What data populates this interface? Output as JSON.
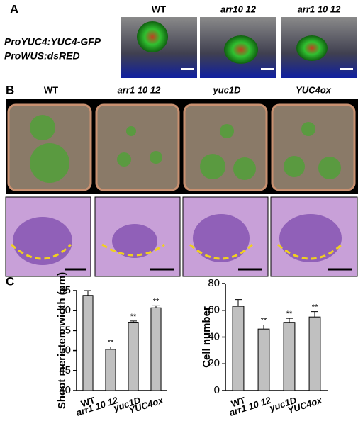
{
  "panel_a": {
    "label": "A",
    "columns": [
      "WT",
      "arr10 12",
      "arr1 10 12"
    ],
    "lines": [
      "ProYUC4:YUC4-GFP",
      "ProWUS:dsRED"
    ]
  },
  "panel_b": {
    "label": "B",
    "columns": [
      "WT",
      "arr1 10 12",
      "yuc1D",
      "YUC4ox"
    ]
  },
  "panel_c": {
    "label": "C"
  },
  "chart_data": [
    {
      "type": "bar",
      "y_label": "Shoot meristem width (μm)",
      "categories": [
        "WT",
        "arr1 10 12",
        "yuc1D",
        "YUC4ox"
      ],
      "values": [
        63.8,
        50.3,
        57.1,
        60.7
      ],
      "errors": [
        1.2,
        0.6,
        0.3,
        0.5
      ],
      "annotations": [
        null,
        "**",
        "**",
        "**"
      ],
      "color": "#c0c0c0",
      "ylim": [
        40,
        65
      ],
      "yticks": [
        40,
        45,
        50,
        55,
        60,
        65
      ]
    },
    {
      "type": "bar",
      "y_label": "Cell number",
      "categories": [
        "WT",
        "arr1 10 12",
        "yuc1D",
        "YUC4ox"
      ],
      "values": [
        63,
        46,
        51,
        55
      ],
      "errors": [
        5,
        3,
        3,
        4
      ],
      "annotations": [
        null,
        "**",
        "**",
        "**"
      ],
      "color": "#c0c0c0",
      "ylim": [
        0,
        80
      ],
      "yticks": [
        0,
        20,
        40,
        60,
        80
      ]
    }
  ]
}
